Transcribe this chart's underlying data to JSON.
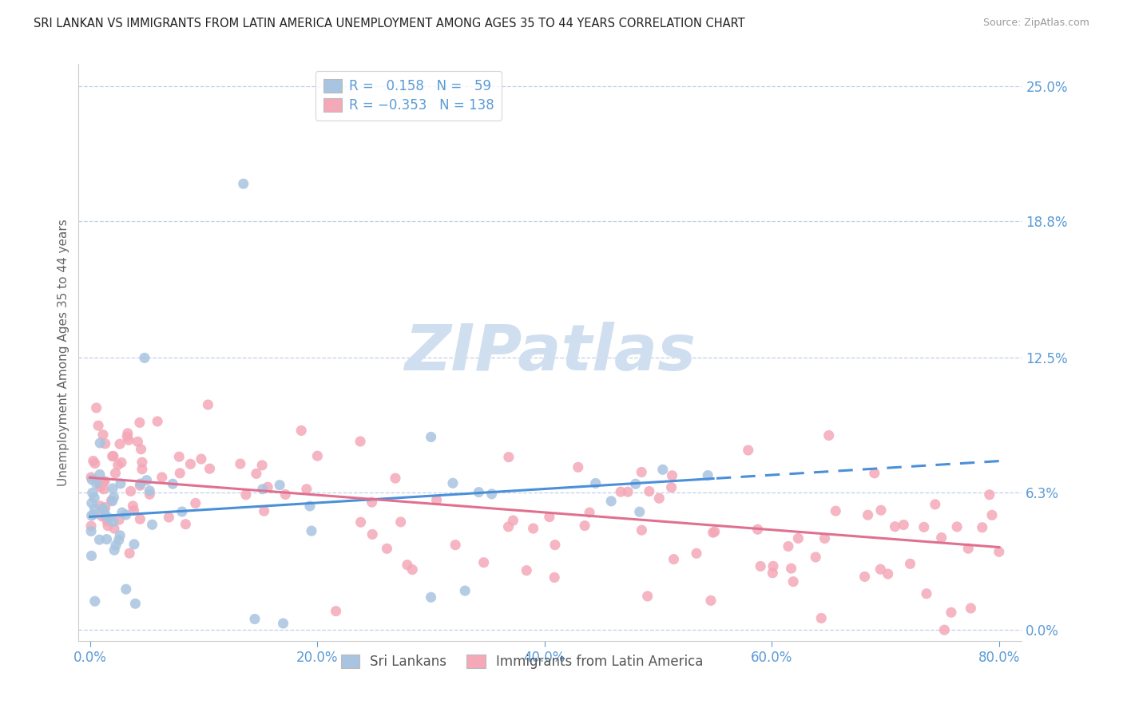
{
  "title": "SRI LANKAN VS IMMIGRANTS FROM LATIN AMERICA UNEMPLOYMENT AMONG AGES 35 TO 44 YEARS CORRELATION CHART",
  "source": "Source: ZipAtlas.com",
  "ylabel": "Unemployment Among Ages 35 to 44 years",
  "xlabel_ticks": [
    "0.0%",
    "20.0%",
    "40.0%",
    "60.0%",
    "80.0%"
  ],
  "xlabel_vals": [
    0.0,
    20.0,
    40.0,
    60.0,
    80.0
  ],
  "right_yticks": [
    0.0,
    6.3,
    12.5,
    18.8,
    25.0
  ],
  "right_ytick_labels": [
    "0.0%",
    "6.3%",
    "12.5%",
    "18.8%",
    "25.0%"
  ],
  "xlim": [
    -1.0,
    82.0
  ],
  "ylim": [
    -0.5,
    26.0
  ],
  "sri_R": 0.158,
  "sri_N": 59,
  "latin_R": -0.353,
  "latin_N": 138,
  "sri_color": "#a8c4e0",
  "latin_color": "#f4a8b8",
  "sri_line_color": "#4a90d9",
  "latin_line_color": "#e07090",
  "axis_color": "#5b9bd5",
  "watermark_color": "#d0dff0",
  "background_color": "#ffffff",
  "sri_line_intercept": 5.2,
  "sri_line_slope": 0.032,
  "sri_line_solid_end": 55.0,
  "latin_line_intercept": 7.0,
  "latin_line_slope": -0.04
}
